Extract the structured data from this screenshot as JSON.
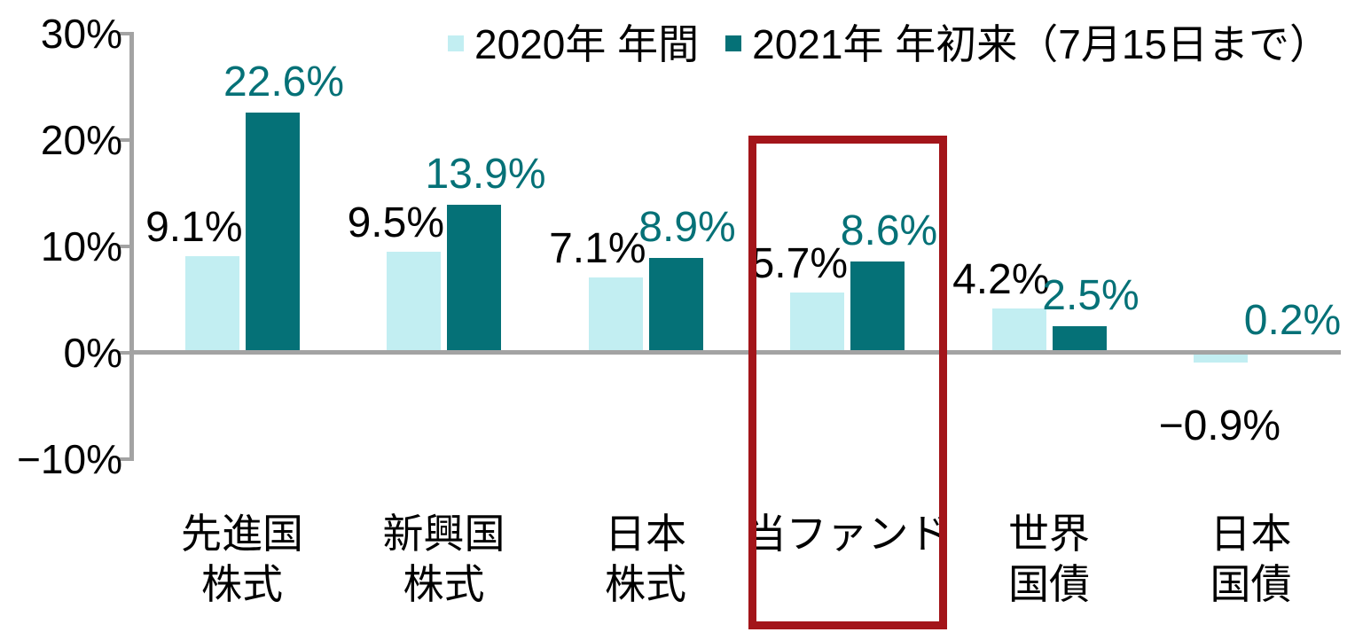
{
  "legend": {
    "items": [
      {
        "label": "2020年 年間",
        "color": "#c2eef2"
      },
      {
        "label": "2021年 年初来（7月15日まで）",
        "color": "#057177"
      }
    ]
  },
  "y_axis": {
    "tick_labels": [
      "30%",
      "20%",
      "10%",
      "0%",
      "−10%"
    ],
    "tick_values": [
      30,
      20,
      10,
      0,
      -10
    ]
  },
  "chart_data": {
    "type": "bar",
    "title": "",
    "xlabel": "",
    "ylabel": "",
    "ylim": [
      -10,
      30
    ],
    "grid": "zero-line-only",
    "legend_position": "top",
    "axis_color": "#a3a3a3",
    "categories": [
      [
        "先進国",
        "株式"
      ],
      [
        "新興国",
        "株式"
      ],
      [
        "日本",
        "株式"
      ],
      [
        "当ファンド"
      ],
      [
        "世界",
        "国債"
      ],
      [
        "日本",
        "国債"
      ]
    ],
    "series": [
      {
        "name": "2020年 年間",
        "color": "#c2eef2",
        "label_color": "#000000",
        "values": [
          9.1,
          9.5,
          7.1,
          5.7,
          4.2,
          -0.9
        ],
        "labels": [
          "9.1%",
          "9.5%",
          "7.1%",
          "5.7%",
          "4.2%",
          "−0.9%"
        ]
      },
      {
        "name": "2021年 年初来（7月15日まで）",
        "color": "#057177",
        "label_color": "#057177",
        "values": [
          22.6,
          13.9,
          8.9,
          8.6,
          2.5,
          0.2
        ],
        "labels": [
          "22.6%",
          "13.9%",
          "8.9%",
          "8.6%",
          "2.5%",
          "0.2%"
        ]
      }
    ],
    "highlight": {
      "category_index": 3,
      "category": "当ファンド",
      "color": "#a3151a"
    }
  }
}
